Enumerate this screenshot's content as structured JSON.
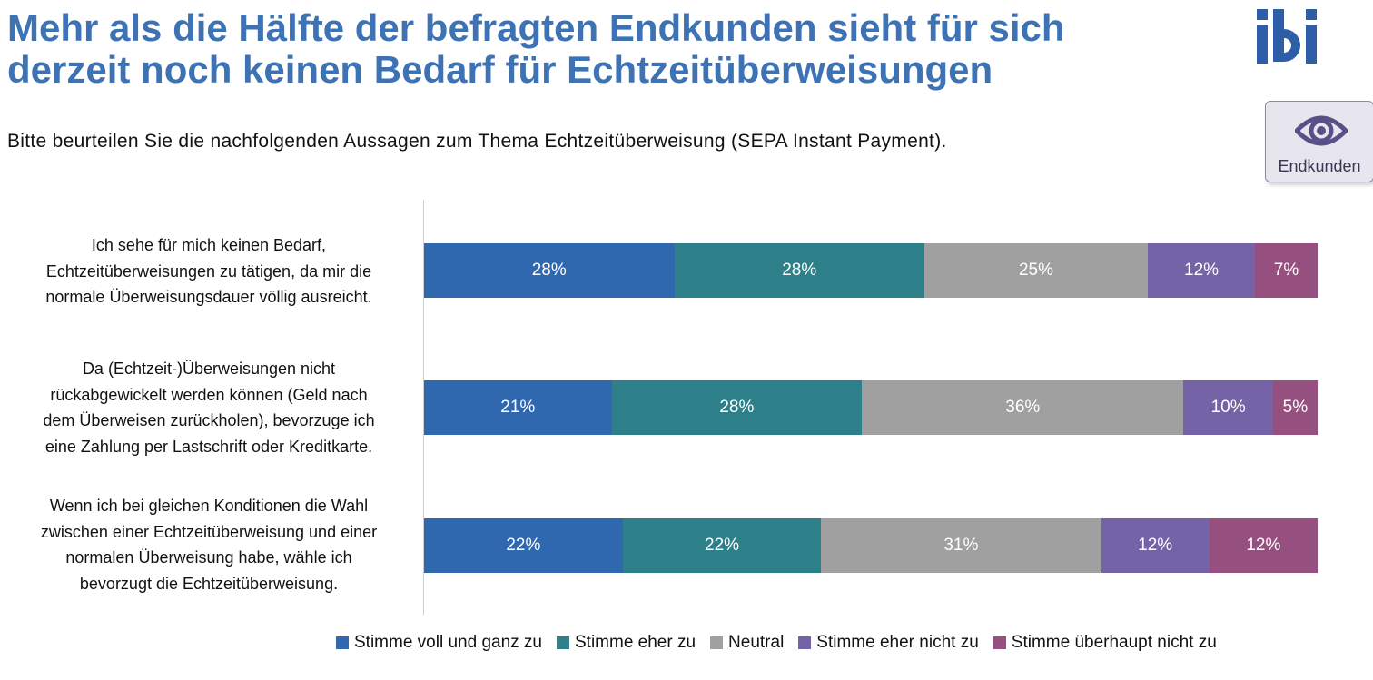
{
  "slide": {
    "title_line1": "Mehr als die Hälfte der befragten Endkunden sieht für sich",
    "title_line2": "derzeit noch keinen Bedarf für Echtzeitüberweisungen",
    "subtitle": "Bitte beurteilen Sie die nachfolgenden Aussagen zum Thema Echtzeitüberweisung (SEPA Instant Payment).",
    "logo_text": "ibi",
    "badge": {
      "label": "Endkunden",
      "icon": "eye-icon"
    }
  },
  "colors": {
    "title": "#3d73b5",
    "series": [
      "#3068b0",
      "#2d7f8a",
      "#a0a0a0",
      "#7463a6",
      "#96507f"
    ]
  },
  "chart_data": {
    "type": "bar",
    "orientation": "horizontal",
    "stacked": true,
    "categories": [
      [
        "Ich sehe für mich keinen Bedarf,",
        "Echtzeitüberweisungen zu tätigen, da mir die",
        "normale Überweisungsdauer völlig ausreicht."
      ],
      [
        "Da (Echtzeit-)Überweisungen nicht",
        "rückabgewickelt werden können (Geld nach",
        "dem Überweisen zurückholen), bevorzuge ich",
        "eine Zahlung per Lastschrift oder Kreditkarte."
      ],
      [
        "Wenn ich bei gleichen Konditionen die Wahl",
        "zwischen einer Echtzeitüberweisung und einer",
        "normalen Überweisung habe, wähle ich",
        "bevorzugt die Echtzeitüberweisung."
      ]
    ],
    "series": [
      {
        "name": "Stimme voll und ganz zu",
        "values": [
          28,
          21,
          22
        ],
        "labels": [
          "28%",
          "21%",
          "22%"
        ]
      },
      {
        "name": "Stimme eher zu",
        "values": [
          28,
          28,
          22
        ],
        "labels": [
          "28%",
          "28%",
          "22%"
        ]
      },
      {
        "name": "Neutral",
        "values": [
          25,
          36,
          31
        ],
        "labels": [
          "25%",
          "36%",
          "31%"
        ]
      },
      {
        "name": "Stimme eher nicht zu",
        "values": [
          12,
          10,
          12
        ],
        "labels": [
          "12%",
          "10%",
          "12%"
        ]
      },
      {
        "name": "Stimme überhaupt nicht zu",
        "values": [
          7,
          5,
          12
        ],
        "labels": [
          "7%",
          "5%",
          "12%"
        ]
      }
    ],
    "legend_position": "bottom",
    "grid": false
  }
}
